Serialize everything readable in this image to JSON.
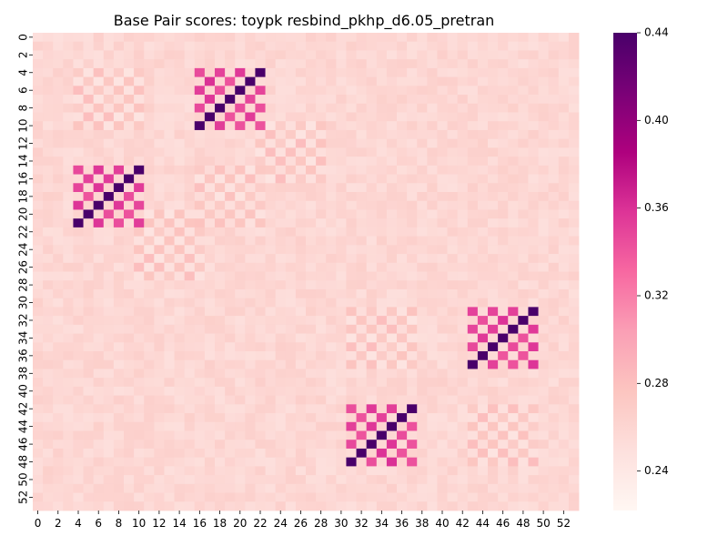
{
  "chart_data": {
    "type": "heatmap",
    "title": "Base Pair scores: toypk resbind_pkhp_d6.05_pretran",
    "xlabel": "",
    "ylabel": "",
    "n": 54,
    "x_tick_labels": [
      "0",
      "2",
      "4",
      "6",
      "8",
      "10",
      "12",
      "14",
      "16",
      "18",
      "20",
      "22",
      "24",
      "26",
      "28",
      "30",
      "32",
      "34",
      "36",
      "38",
      "40",
      "42",
      "44",
      "46",
      "48",
      "50",
      "52"
    ],
    "y_tick_labels": [
      "0",
      "2",
      "4",
      "6",
      "8",
      "10",
      "12",
      "14",
      "16",
      "18",
      "20",
      "22",
      "24",
      "26",
      "28",
      "30",
      "32",
      "34",
      "36",
      "38",
      "40",
      "42",
      "44",
      "46",
      "48",
      "50",
      "52"
    ],
    "background_value": 0.258,
    "value_range": [
      0.222,
      0.44
    ],
    "colormap": "RdPu",
    "colorbar": {
      "ticks": [
        "0.24",
        "0.28",
        "0.32",
        "0.36",
        "0.40",
        "0.44"
      ],
      "tick_values": [
        0.24,
        0.28,
        0.32,
        0.36,
        0.4,
        0.44
      ]
    },
    "strong_blocks": [
      {
        "rows": [
          4,
          10
        ],
        "cols": [
          16,
          22
        ],
        "high": 0.44,
        "low": 0.34
      },
      {
        "rows": [
          15,
          21
        ],
        "cols": [
          4,
          10
        ],
        "high": 0.44,
        "low": 0.34
      },
      {
        "rows": [
          31,
          37
        ],
        "cols": [
          43,
          49
        ],
        "high": 0.44,
        "low": 0.34
      },
      {
        "rows": [
          42,
          48
        ],
        "cols": [
          31,
          37
        ],
        "high": 0.44,
        "low": 0.34
      }
    ],
    "weak_blocks": [
      {
        "rows": [
          4,
          10
        ],
        "cols": [
          4,
          10
        ]
      },
      {
        "rows": [
          15,
          21
        ],
        "cols": [
          16,
          22
        ]
      },
      {
        "rows": [
          10,
          16
        ],
        "cols": [
          22,
          28
        ]
      },
      {
        "rows": [
          20,
          27
        ],
        "cols": [
          10,
          16
        ]
      },
      {
        "rows": [
          31,
          37
        ],
        "cols": [
          31,
          37
        ]
      },
      {
        "rows": [
          42,
          48
        ],
        "cols": [
          43,
          49
        ]
      }
    ]
  }
}
